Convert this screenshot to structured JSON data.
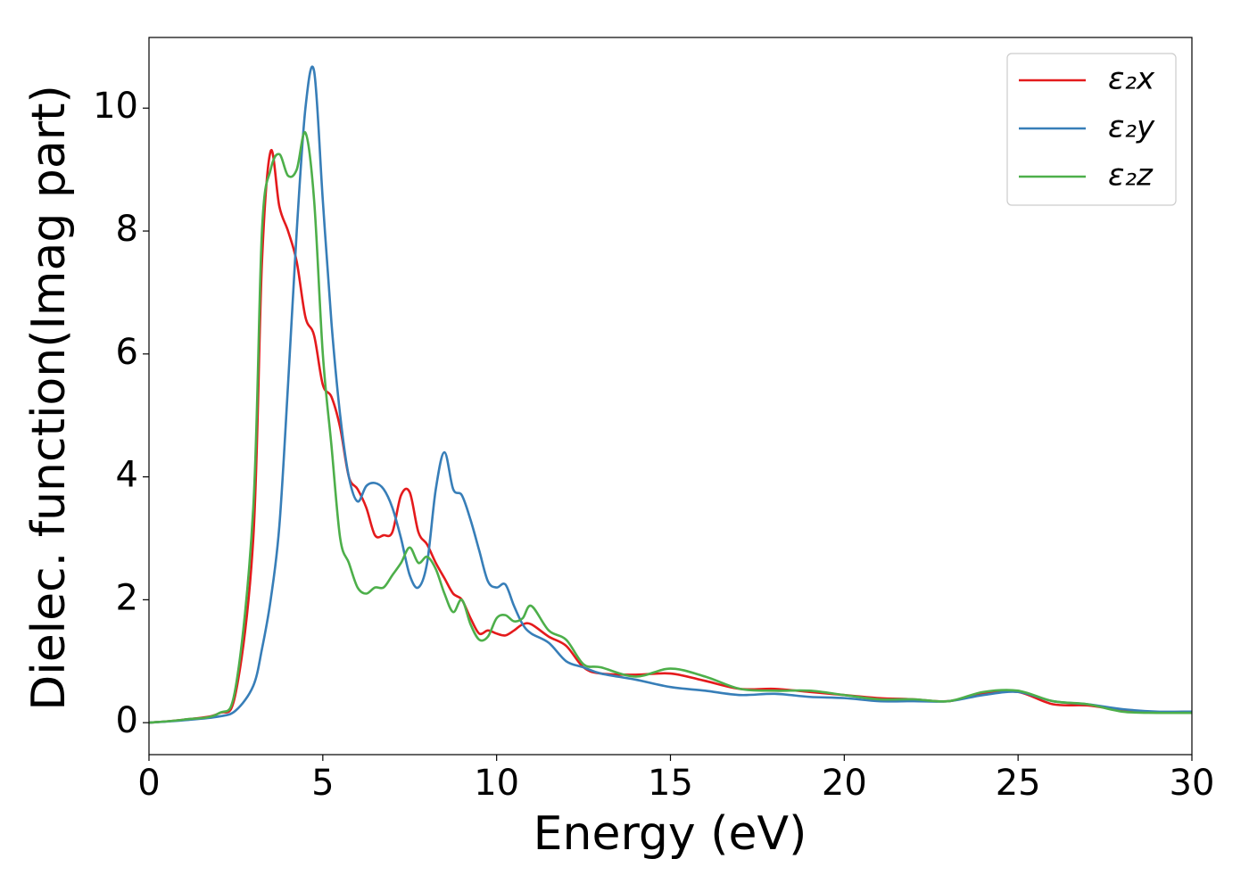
{
  "chart_data": {
    "type": "line",
    "xlabel": "Energy (eV)",
    "ylabel": "Dielec. function(Imag part)",
    "x": [
      0,
      1,
      2,
      2.5,
      3,
      3.25,
      3.5,
      3.75,
      4,
      4.25,
      4.5,
      4.75,
      5,
      5.25,
      5.5,
      5.75,
      6,
      6.25,
      6.5,
      6.75,
      7,
      7.25,
      7.5,
      7.75,
      8,
      8.25,
      8.5,
      8.75,
      9,
      9.25,
      9.5,
      9.75,
      10,
      10.25,
      10.5,
      10.75,
      11,
      11.5,
      12,
      12.5,
      13,
      14,
      15,
      16,
      17,
      18,
      19,
      20,
      21,
      22,
      23,
      24,
      25,
      26,
      27,
      28,
      29,
      30
    ],
    "series": [
      {
        "name": "ε₂x",
        "color": "#e41a1c",
        "values": [
          0,
          0.05,
          0.15,
          0.5,
          3.0,
          7.5,
          9.3,
          8.4,
          8.0,
          7.5,
          6.6,
          6.3,
          5.5,
          5.3,
          4.8,
          4.0,
          3.8,
          3.5,
          3.05,
          3.05,
          3.1,
          3.7,
          3.75,
          3.1,
          2.9,
          2.6,
          2.35,
          2.1,
          2.0,
          1.7,
          1.45,
          1.5,
          1.45,
          1.42,
          1.5,
          1.6,
          1.6,
          1.4,
          1.25,
          0.9,
          0.8,
          0.78,
          0.8,
          0.68,
          0.55,
          0.55,
          0.5,
          0.45,
          0.4,
          0.38,
          0.35,
          0.48,
          0.5,
          0.3,
          0.28,
          0.2,
          0.17,
          0.18
        ]
      },
      {
        "name": "ε₂y",
        "color": "#377eb8",
        "values": [
          0,
          0.04,
          0.1,
          0.2,
          0.6,
          1.2,
          2.0,
          3.2,
          5.5,
          8.0,
          10.0,
          10.6,
          8.5,
          6.5,
          5.0,
          4.0,
          3.6,
          3.85,
          3.9,
          3.8,
          3.5,
          3.0,
          2.4,
          2.2,
          2.6,
          3.8,
          4.4,
          3.8,
          3.7,
          3.3,
          2.8,
          2.3,
          2.2,
          2.25,
          1.9,
          1.6,
          1.45,
          1.3,
          1.0,
          0.9,
          0.8,
          0.7,
          0.58,
          0.52,
          0.45,
          0.47,
          0.42,
          0.4,
          0.35,
          0.35,
          0.35,
          0.45,
          0.5,
          0.35,
          0.3,
          0.22,
          0.18,
          0.18
        ]
      },
      {
        "name": "ε₂z",
        "color": "#4daf4a",
        "values": [
          0,
          0.05,
          0.15,
          0.6,
          3.5,
          8.0,
          9.0,
          9.25,
          8.9,
          9.0,
          9.6,
          8.5,
          6.0,
          4.5,
          3.0,
          2.6,
          2.2,
          2.1,
          2.2,
          2.2,
          2.4,
          2.6,
          2.85,
          2.6,
          2.7,
          2.5,
          2.1,
          1.8,
          2.0,
          1.6,
          1.35,
          1.4,
          1.7,
          1.75,
          1.65,
          1.7,
          1.9,
          1.5,
          1.35,
          0.95,
          0.9,
          0.75,
          0.88,
          0.75,
          0.55,
          0.52,
          0.52,
          0.45,
          0.38,
          0.38,
          0.35,
          0.5,
          0.52,
          0.35,
          0.3,
          0.18,
          0.16,
          0.16
        ]
      }
    ],
    "xlim": [
      0,
      30
    ],
    "xticks": [
      0,
      5,
      10,
      15,
      20,
      25,
      30
    ],
    "ylim": [
      -0.52,
      11.15
    ],
    "yticks": [
      0,
      2,
      4,
      6,
      8,
      10
    ],
    "legend": "upper right",
    "grid": false
  }
}
